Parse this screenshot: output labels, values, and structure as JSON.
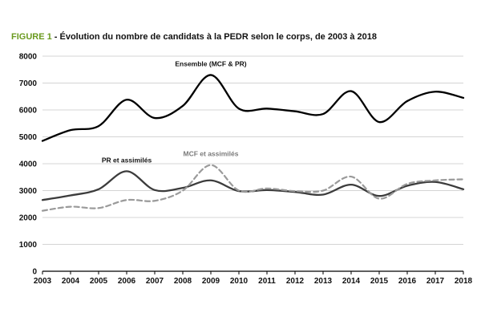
{
  "figure": {
    "label": "FIGURE 1",
    "title": " - Évolution du nombre de candidats à la PEDR selon le corps, de 2003 à 2018"
  },
  "chart_data": {
    "type": "line",
    "x": [
      2003,
      2004,
      2005,
      2006,
      2007,
      2008,
      2009,
      2010,
      2011,
      2012,
      2013,
      2014,
      2015,
      2016,
      2017,
      2018
    ],
    "ylim": [
      0,
      8000
    ],
    "yticks": [
      0,
      1000,
      2000,
      3000,
      4000,
      5000,
      6000,
      7000,
      8000
    ],
    "grid": "horizontal",
    "series": [
      {
        "name": "Ensemble (MCF & PR)",
        "values": [
          4850,
          5250,
          5400,
          6380,
          5700,
          6150,
          7300,
          6050,
          6050,
          5950,
          5850,
          6700,
          5550,
          6330,
          6680,
          6450
        ],
        "color": "#000000",
        "dash": "solid",
        "label_at": [
          2009,
          7620
        ]
      },
      {
        "name": "PR et assimilés",
        "values": [
          2650,
          2820,
          3050,
          3720,
          3020,
          3100,
          3380,
          2980,
          3020,
          2950,
          2850,
          3220,
          2800,
          3180,
          3320,
          3050
        ],
        "color": "#3c3c3c",
        "dash": "solid",
        "label_at": [
          2006,
          4050
        ]
      },
      {
        "name": "MCF et assimilés",
        "values": [
          2250,
          2400,
          2350,
          2650,
          2620,
          3000,
          3950,
          3000,
          3080,
          2980,
          3000,
          3520,
          2700,
          3250,
          3380,
          3420
        ],
        "color": "#9a9a9a",
        "dash": "dashed",
        "label_at": [
          2009,
          4280
        ]
      }
    ]
  }
}
